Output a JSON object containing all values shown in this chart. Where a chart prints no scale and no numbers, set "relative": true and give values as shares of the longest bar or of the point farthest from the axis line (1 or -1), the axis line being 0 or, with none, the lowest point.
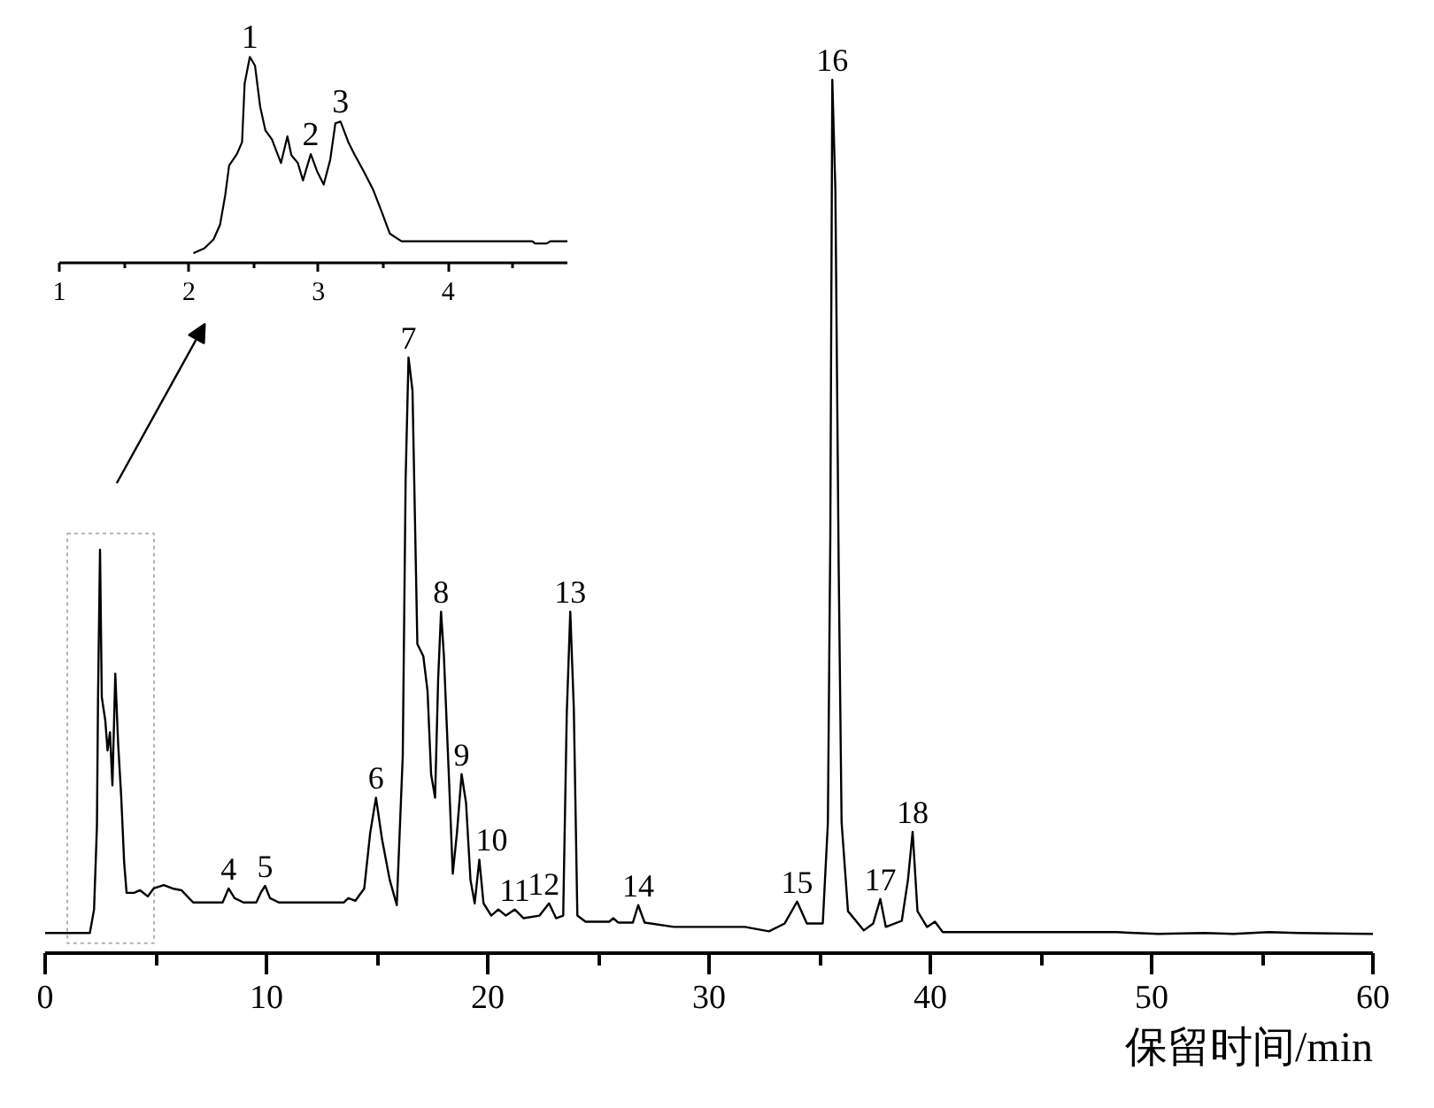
{
  "chart_data": [
    {
      "type": "line",
      "xlabel": "保留时间/min",
      "color": "#000000",
      "relative": true,
      "x": [
        0,
        2.02,
        2.21,
        2.34,
        2.39,
        2.48,
        2.56,
        2.72,
        2.82,
        2.93,
        3.04,
        3.17,
        3.3,
        3.44,
        3.57,
        3.68,
        4.02,
        4.29,
        4.64,
        4.9,
        5.36,
        5.76,
        6.16,
        6.5,
        6.69,
        8.02,
        8.29,
        8.56,
        8.96,
        9.54,
        9.76,
        9.94,
        10.16,
        10.56,
        13.49,
        13.7,
        14.02,
        14.42,
        14.69,
        14.95,
        15.22,
        15.57,
        15.89,
        16.16,
        16.29,
        16.42,
        16.6,
        16.82,
        17.09,
        17.28,
        17.44,
        17.62,
        17.76,
        17.89,
        18.02,
        18.24,
        18.42,
        18.61,
        18.82,
        19.02,
        19.22,
        19.41,
        19.62,
        19.81,
        20.16,
        20.48,
        20.82,
        21.22,
        21.62,
        22.34,
        22.77,
        23.09,
        23.41,
        23.57,
        23.73,
        23.89,
        24.05,
        24.42,
        25.49,
        25.68,
        25.89,
        26.56,
        26.8,
        27.09,
        28.42,
        31.62,
        32.71,
        33.42,
        33.98,
        34.42,
        35.14,
        35.37,
        35.48,
        35.57,
        35.71,
        35.86,
        35.99,
        36.28,
        36.99,
        37.42,
        37.74,
        37.99,
        38.71,
        38.99,
        39.2,
        39.42,
        39.85,
        40.21,
        40.56,
        48.42,
        50.29,
        52.38,
        53.7,
        55.3,
        56.6,
        60
      ],
      "values": [
        0.023,
        0.023,
        0.05,
        0.145,
        0.293,
        0.462,
        0.293,
        0.266,
        0.232,
        0.253,
        0.192,
        0.32,
        0.239,
        0.178,
        0.104,
        0.069,
        0.069,
        0.072,
        0.065,
        0.074,
        0.078,
        0.074,
        0.072,
        0.063,
        0.058,
        0.058,
        0.074,
        0.063,
        0.058,
        0.058,
        0.07,
        0.077,
        0.063,
        0.058,
        0.058,
        0.063,
        0.06,
        0.074,
        0.138,
        0.178,
        0.131,
        0.084,
        0.055,
        0.226,
        0.543,
        0.682,
        0.644,
        0.354,
        0.34,
        0.3,
        0.205,
        0.178,
        0.314,
        0.391,
        0.34,
        0.205,
        0.091,
        0.138,
        0.205,
        0.172,
        0.084,
        0.057,
        0.107,
        0.057,
        0.043,
        0.05,
        0.043,
        0.05,
        0.04,
        0.043,
        0.057,
        0.04,
        0.043,
        0.273,
        0.391,
        0.28,
        0.043,
        0.036,
        0.036,
        0.04,
        0.035,
        0.035,
        0.055,
        0.035,
        0.03,
        0.03,
        0.025,
        0.034,
        0.059,
        0.034,
        0.034,
        0.149,
        0.475,
        1.0,
        0.873,
        0.44,
        0.15,
        0.048,
        0.026,
        0.034,
        0.062,
        0.03,
        0.037,
        0.084,
        0.139,
        0.048,
        0.03,
        0.036,
        0.024,
        0.024,
        0.022,
        0.023,
        0.022,
        0.024,
        0.023,
        0.022
      ],
      "xlim": [
        0,
        60
      ],
      "xticks": [
        0,
        {
          "value": 5,
          "label": null
        },
        10,
        {
          "value": 15,
          "label": null
        },
        20,
        {
          "value": 25,
          "label": null
        },
        30,
        {
          "value": 35,
          "label": null
        },
        40,
        {
          "value": 45,
          "label": null
        },
        50,
        {
          "value": 55,
          "label": null
        },
        60
      ],
      "annotations": [
        {
          "text": "4",
          "x": 8.29,
          "y": 0.074
        },
        {
          "text": "5",
          "x": 9.94,
          "y": 0.077
        },
        {
          "text": "6",
          "x": 14.95,
          "y": 0.178
        },
        {
          "text": "7",
          "x": 16.42,
          "y": 0.682
        },
        {
          "text": "8",
          "x": 17.89,
          "y": 0.391
        },
        {
          "text": "9",
          "x": 18.82,
          "y": 0.205
        },
        {
          "text": "10",
          "x": 19.62,
          "y": 0.107
        },
        {
          "text": "11",
          "x": 21.22,
          "y": 0.05
        },
        {
          "text": "12",
          "x": 22.77,
          "y": 0.057
        },
        {
          "text": "13",
          "x": 23.73,
          "y": 0.391
        },
        {
          "text": "14",
          "x": 26.8,
          "y": 0.055
        },
        {
          "text": "15",
          "x": 33.98,
          "y": 0.059
        },
        {
          "text": "16",
          "x": 35.57,
          "y": 1.0
        },
        {
          "text": "17",
          "x": 37.74,
          "y": 0.062
        },
        {
          "text": "18",
          "x": 39.2,
          "y": 0.139
        }
      ]
    },
    {
      "type": "line",
      "color": "#000000",
      "relative": true,
      "x": [
        2.04,
        2.12,
        2.19,
        2.24,
        2.28,
        2.31,
        2.37,
        2.41,
        2.43,
        2.47,
        2.51,
        2.55,
        2.59,
        2.64,
        2.71,
        2.76,
        2.79,
        2.84,
        2.88,
        2.94,
        2.99,
        3.04,
        3.09,
        3.13,
        3.17,
        3.23,
        3.28,
        3.35,
        3.42,
        3.49,
        3.55,
        3.64,
        3.96,
        4.65,
        4.67,
        4.76,
        4.79,
        4.92
      ],
      "values": [
        0.048,
        0.071,
        0.114,
        0.185,
        0.328,
        0.472,
        0.528,
        0.586,
        0.871,
        1.0,
        0.957,
        0.757,
        0.643,
        0.6,
        0.485,
        0.614,
        0.523,
        0.485,
        0.4,
        0.528,
        0.443,
        0.38,
        0.5,
        0.678,
        0.686,
        0.586,
        0.523,
        0.443,
        0.357,
        0.243,
        0.142,
        0.105,
        0.105,
        0.105,
        0.094,
        0.094,
        0.105,
        0.105
      ],
      "xlim": [
        1,
        4.92
      ],
      "xticks": [
        1,
        {
          "value": 1.5,
          "label": null
        },
        2,
        {
          "value": 2.5,
          "label": null
        },
        3,
        {
          "value": 3.5,
          "label": null
        },
        4,
        {
          "value": 4.5,
          "label": null
        }
      ],
      "annotations": [
        {
          "text": "1",
          "x": 2.47,
          "y": 1.0
        },
        {
          "text": "2",
          "x": 2.94,
          "y": 0.528
        },
        {
          "text": "3",
          "x": 3.17,
          "y": 0.686
        }
      ]
    }
  ]
}
